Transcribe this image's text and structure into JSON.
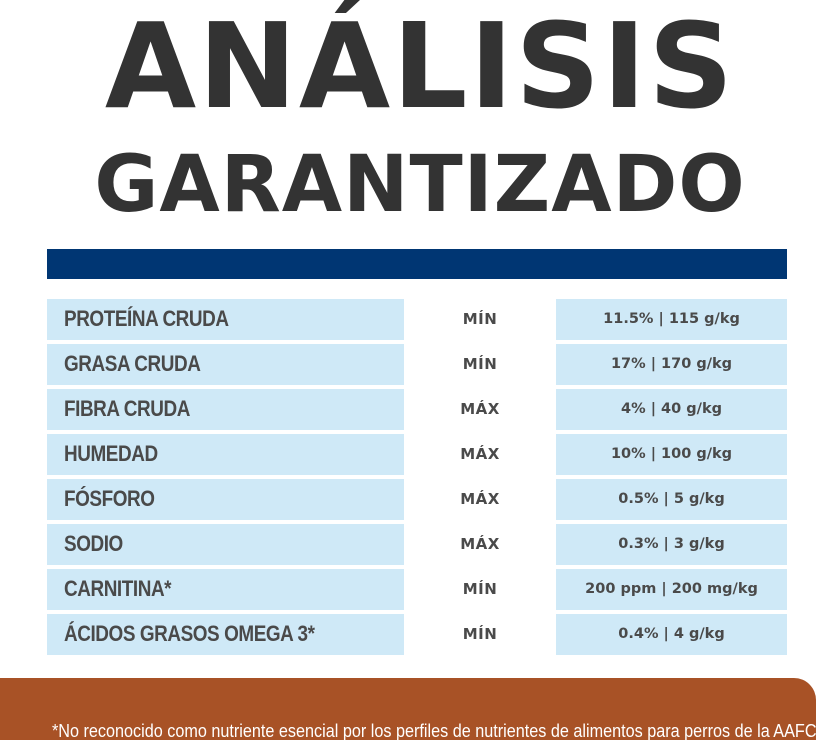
{
  "title": {
    "line1": "ANÁLISIS",
    "line2": "GARANTIZADO"
  },
  "colors": {
    "title_text": "#333333",
    "header_bar": "#003673",
    "cell_background": "#cfe9f7",
    "cell_text": "#4a4a4a",
    "footer_background": "#a85226",
    "footer_text": "#ffffff"
  },
  "rows": [
    {
      "name": "PROTEÍNA CRUDA",
      "kind": "MÍN",
      "value": "11.5% | 115 g/kg"
    },
    {
      "name": "GRASA CRUDA",
      "kind": "MÍN",
      "value": "17% | 170 g/kg"
    },
    {
      "name": "FIBRA CRUDA",
      "kind": "MÁX",
      "value": "4% | 40 g/kg"
    },
    {
      "name": "HUMEDAD",
      "kind": "MÁX",
      "value": "10% | 100 g/kg"
    },
    {
      "name": "FÓSFORO",
      "kind": "MÁX",
      "value": "0.5% | 5 g/kg"
    },
    {
      "name": "SODIO",
      "kind": "MÁX",
      "value": "0.3% | 3 g/kg"
    },
    {
      "name": "CARNITINA*",
      "kind": "MÍN",
      "value": "200 ppm | 200 mg/kg"
    },
    {
      "name": "ÁCIDOS GRASOS OMEGA 3*",
      "kind": "MÍN",
      "value": "0.4% | 4 g/kg"
    }
  ],
  "footnote": "*No reconocido como nutriente esencial por los perfiles de nutrientes de alimentos para perros de la AAFCO."
}
